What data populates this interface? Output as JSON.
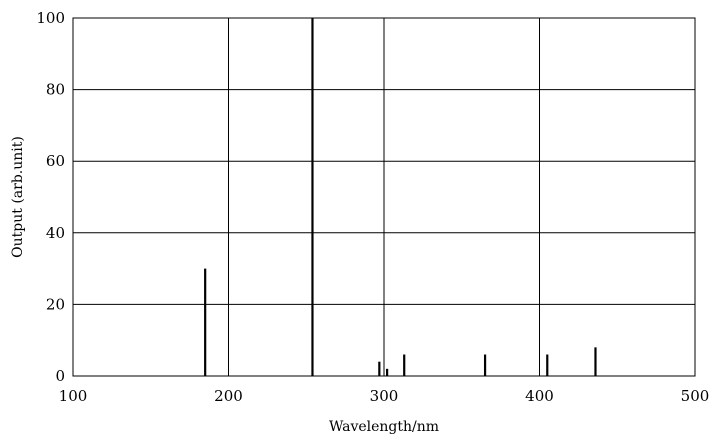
{
  "chart_data": {
    "type": "bar",
    "title": "",
    "xlabel": "Wavelength/nm",
    "ylabel": "Output (arb.unit)",
    "xlim": [
      100,
      500
    ],
    "ylim": [
      0,
      100
    ],
    "xticks": [
      "100",
      "200",
      "300",
      "400",
      "500"
    ],
    "yticks": [
      "0",
      "20",
      "40",
      "60",
      "80",
      "100"
    ],
    "grid": true,
    "legend": "none",
    "series": [
      {
        "x": [
          185,
          254,
          297,
          302,
          313,
          365,
          405,
          436
        ],
        "values": [
          30,
          100,
          4,
          2,
          6,
          6,
          6,
          8
        ]
      }
    ],
    "colors": {
      "line": "#000000",
      "grid": "#000000",
      "background": "#ffffff"
    }
  }
}
